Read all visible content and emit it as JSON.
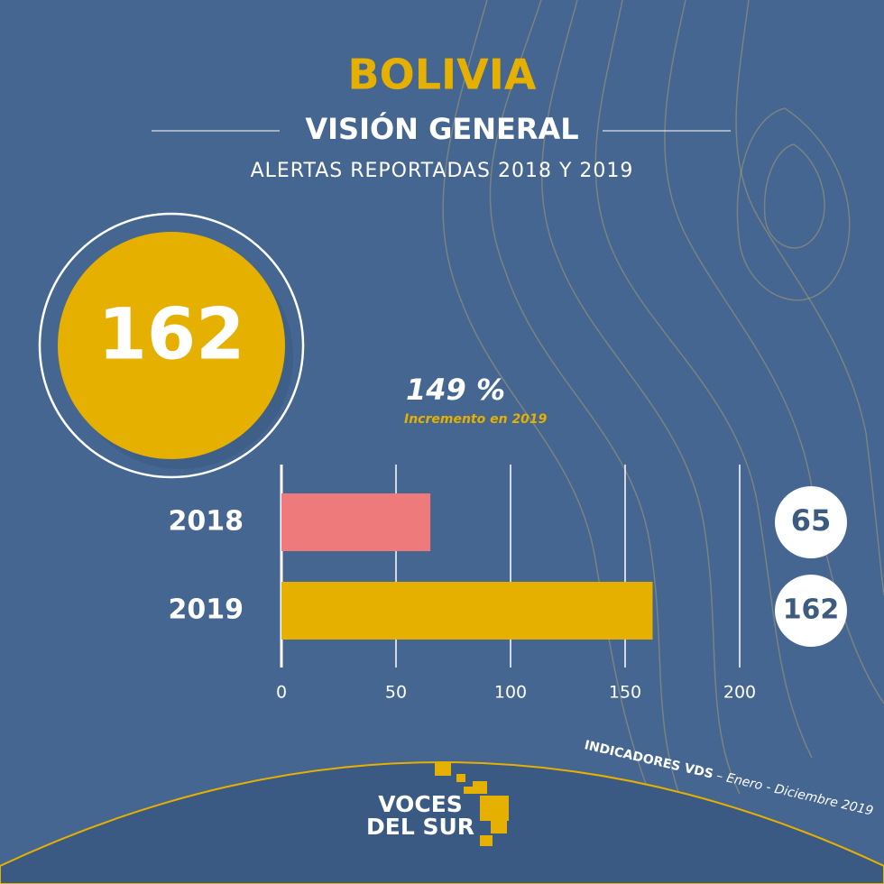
{
  "chart_data": {
    "type": "bar",
    "orientation": "horizontal",
    "title": "BOLIVIA",
    "subtitle": "VISIÓN GENERAL",
    "caption": "ALERTAS REPORTADAS 2018 Y 2019",
    "total": 162,
    "change_label": "149 %",
    "change_note": "Incremento en 2019",
    "categories": [
      "2018",
      "2019"
    ],
    "values": [
      65,
      162
    ],
    "colors": [
      "#ef7a7b",
      "#e6b000"
    ],
    "xlim": [
      0,
      200
    ],
    "xticks": [
      0,
      50,
      100,
      150,
      200
    ],
    "grid": true,
    "footer": {
      "brand": "INDICADORES VDS",
      "period": "– Enero - Diciembre 2019",
      "logo_line1": "VOCES",
      "logo_line2": "DEL SUR"
    }
  }
}
